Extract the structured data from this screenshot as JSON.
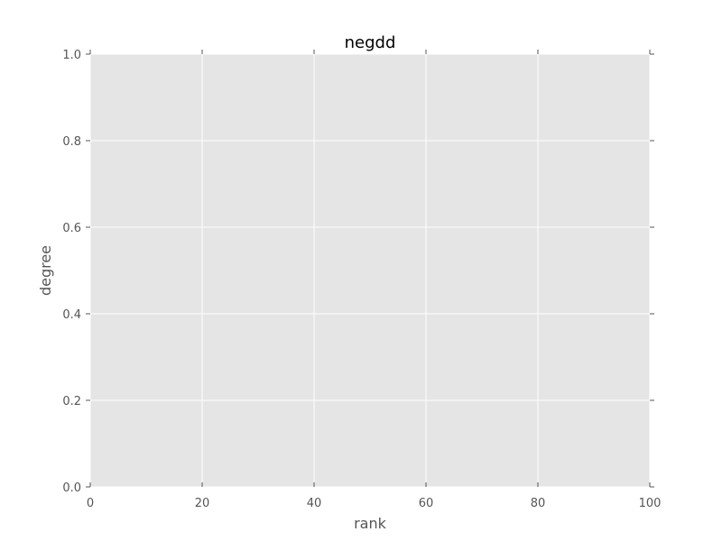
{
  "chart_data": {
    "type": "line",
    "title": "negdd",
    "xlabel": "rank",
    "ylabel": "degree",
    "xlim": [
      0,
      100
    ],
    "ylim": [
      0,
      1
    ],
    "xticks": [
      0,
      20,
      40,
      60,
      80,
      100
    ],
    "yticks": [
      0.0,
      0.2,
      0.4,
      0.6,
      0.8,
      1.0
    ],
    "xtick_labels": [
      "0",
      "20",
      "40",
      "60",
      "80",
      "100"
    ],
    "ytick_labels": [
      "0.0",
      "0.2",
      "0.4",
      "0.6",
      "0.8",
      "1.0"
    ],
    "grid": true,
    "series": []
  },
  "colors": {
    "plot_background": "#e5e5e5",
    "grid": "#ffffff",
    "tick": "#555555",
    "text": "#555555",
    "title": "#000000"
  }
}
